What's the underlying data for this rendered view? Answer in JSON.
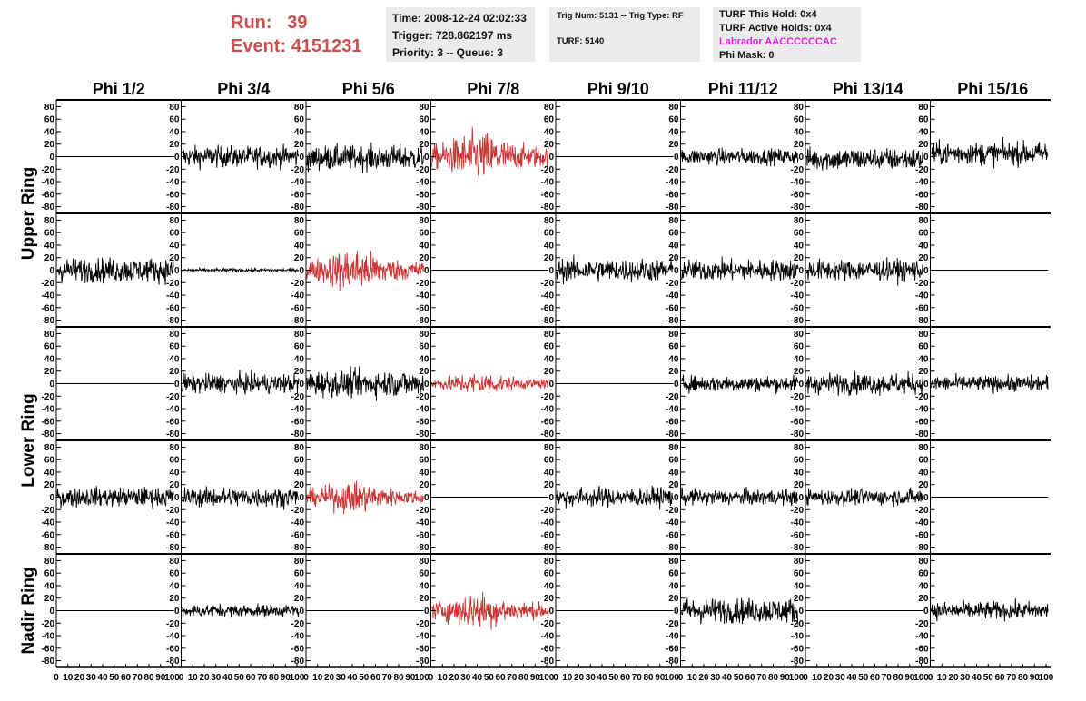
{
  "run": {
    "run_label": "Run:",
    "run_value": "39",
    "event_label": "Event:",
    "event_value": "4151231"
  },
  "time_box": {
    "time": "Time: 2008-12-24 02:02:33",
    "trigger": "Trigger: 728.862197 ms",
    "priority": "Priority: 3 -- Queue: 3"
  },
  "trig_box": {
    "trig": "Trig Num: 5131 -- Trig Type: RF",
    "turf": "TURF: 5140"
  },
  "turf_box": {
    "this_hold": "TURF This Hold: 0x4",
    "active_holds": "TURF Active Holds: 0x4",
    "labrador": "Labrador AACCCCCCAC",
    "phi_mask": "Phi Mask: 0"
  },
  "colors": {
    "trace": "#000000",
    "triggered": "#cc3333",
    "title_red": "#cd5050",
    "labrador": "#e81ee8",
    "box_bg": "#ececec"
  },
  "chart_data": {
    "type": "line",
    "columns": [
      "Phi 1/2",
      "Phi 3/4",
      "Phi 5/6",
      "Phi 7/8",
      "Phi 9/10",
      "Phi 11/12",
      "Phi 13/14",
      "Phi 15/16"
    ],
    "ring_labels": [
      {
        "text": "Upper Ring",
        "rows": [
          0,
          1
        ]
      },
      {
        "text": "Lower Ring",
        "rows": [
          2,
          3
        ]
      },
      {
        "text": "Nadir Ring",
        "rows": [
          4,
          4
        ]
      }
    ],
    "ylim": [
      -85,
      85
    ],
    "y_ticks": [
      -80,
      -60,
      -40,
      -20,
      0,
      20,
      40,
      60,
      80
    ],
    "xlim": [
      0,
      100
    ],
    "x_ticks": [
      0,
      10,
      20,
      30,
      40,
      50,
      60,
      70,
      80,
      90,
      100
    ],
    "row_amplitudes": [
      [
        0,
        12,
        14,
        22,
        0,
        9,
        13,
        13
      ],
      [
        14,
        2,
        19,
        0,
        13,
        12,
        12,
        0
      ],
      [
        0,
        11,
        15,
        10,
        0,
        9,
        12,
        9
      ],
      [
        11,
        11,
        14,
        0,
        11,
        9,
        9,
        0
      ],
      [
        0,
        7,
        0,
        16,
        0,
        14,
        0,
        10
      ]
    ],
    "row_offsets": [
      [
        0,
        0,
        -2,
        0,
        0,
        0,
        -4,
        5
      ],
      [
        0,
        0,
        0,
        0,
        0,
        0,
        0,
        0
      ],
      [
        0,
        0,
        0,
        0,
        0,
        0,
        0,
        0
      ],
      [
        0,
        0,
        0,
        0,
        0,
        0,
        0,
        0
      ],
      [
        0,
        0,
        0,
        0,
        0,
        0,
        0,
        0
      ]
    ],
    "highlighted": [
      [
        false,
        false,
        false,
        true,
        false,
        false,
        false,
        false
      ],
      [
        false,
        false,
        true,
        false,
        false,
        false,
        false,
        false
      ],
      [
        false,
        false,
        false,
        true,
        false,
        false,
        false,
        false
      ],
      [
        false,
        false,
        true,
        false,
        false,
        false,
        false,
        false
      ],
      [
        false,
        false,
        false,
        true,
        false,
        false,
        false,
        false
      ]
    ]
  }
}
